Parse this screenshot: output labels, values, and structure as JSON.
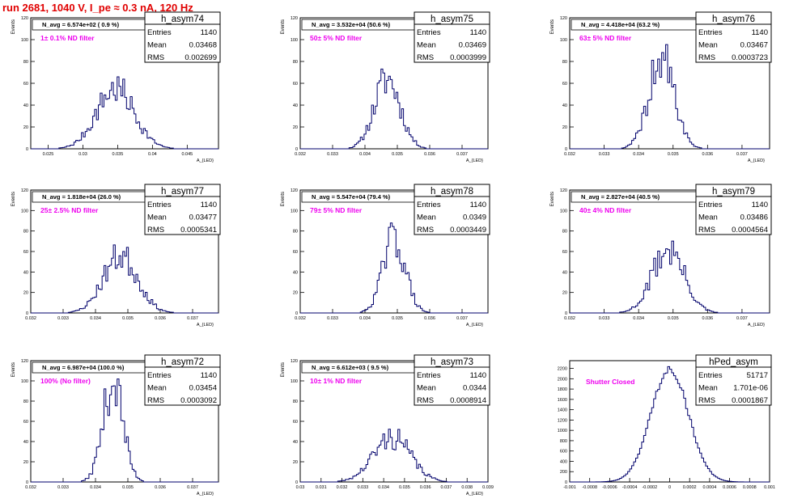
{
  "header": {
    "run_title": "run 2681,  1040 V, I_pe ≈ 0.3 nA, 120 Hz"
  },
  "style": {
    "line_color": "#00006b",
    "note_color": "#ee00ee",
    "title_color": "#e00000"
  },
  "chart_data": [
    {
      "type": "histogram",
      "name": "h_asym74",
      "entries": "1140",
      "mean": "0.03468",
      "rms": "0.002699",
      "n_avg": "N_avg = 6.574e+02 ( 0.9 %)",
      "note": "1± 0.1% ND filter",
      "ylabel": "Events",
      "xlabel": "A_{LED}",
      "xlim": [
        0.0225,
        0.0495
      ],
      "ylim": [
        0,
        120
      ],
      "xticks": [
        "0.025",
        "0.03",
        "0.035",
        "0.04",
        "0.045"
      ],
      "xtick_values": [
        0.025,
        0.03,
        0.035,
        0.04,
        0.045
      ],
      "yticks": [
        "0",
        "20",
        "40",
        "60",
        "80",
        "100",
        "120"
      ],
      "ytick_values": [
        0,
        20,
        40,
        60,
        80,
        100,
        120
      ],
      "mu": 0.03468,
      "sigma": 0.0027,
      "peak": 55,
      "seed": 7
    },
    {
      "type": "histogram",
      "name": "h_asym75",
      "entries": "1140",
      "mean": "0.03469",
      "rms": "0.0003999",
      "n_avg": "N_avg = 3.532e+04 (50.6 %)",
      "note": "50± 5% ND filter",
      "ylabel": "Events",
      "xlabel": "A_{LED}",
      "xlim": [
        0.032,
        0.0378
      ],
      "ylim": [
        0,
        120
      ],
      "xticks": [
        "0.032",
        "0.033",
        "0.034",
        "0.035",
        "0.036",
        "0.037"
      ],
      "xtick_values": [
        0.032,
        0.033,
        0.034,
        0.035,
        0.036,
        0.037
      ],
      "yticks": [
        "0",
        "20",
        "40",
        "60",
        "80",
        "100",
        "120"
      ],
      "ytick_values": [
        0,
        20,
        40,
        60,
        80,
        100,
        120
      ],
      "mu": 0.03469,
      "sigma": 0.0004,
      "peak": 64,
      "seed": 11
    },
    {
      "type": "histogram",
      "name": "h_asym76",
      "entries": "1140",
      "mean": "0.03467",
      "rms": "0.0003723",
      "n_avg": "N_avg = 4.418e+04 (63.2 %)",
      "note": "63± 5% ND filter",
      "ylabel": "Events",
      "xlabel": "A_{LED}",
      "xlim": [
        0.032,
        0.0378
      ],
      "ylim": [
        0,
        120
      ],
      "xticks": [
        "0.032",
        "0.033",
        "0.034",
        "0.035",
        "0.036",
        "0.037"
      ],
      "xtick_values": [
        0.032,
        0.033,
        0.034,
        0.035,
        0.036,
        0.037
      ],
      "yticks": [
        "0",
        "20",
        "40",
        "60",
        "80",
        "100",
        "120"
      ],
      "ytick_values": [
        0,
        20,
        40,
        60,
        80,
        100,
        120
      ],
      "mu": 0.03467,
      "sigma": 0.00037,
      "peak": 82,
      "seed": 19
    },
    {
      "type": "histogram",
      "name": "h_asym77",
      "entries": "1140",
      "mean": "0.03477",
      "rms": "0.0005341",
      "n_avg": "N_avg = 1.818e+04 (26.0 %)",
      "note": "25± 2.5% ND filter",
      "ylabel": "Events",
      "xlabel": "A_{LED}",
      "xlim": [
        0.032,
        0.0378
      ],
      "ylim": [
        0,
        120
      ],
      "xticks": [
        "0.032",
        "0.033",
        "0.034",
        "0.035",
        "0.036",
        "0.037"
      ],
      "xtick_values": [
        0.032,
        0.033,
        0.034,
        0.035,
        0.036,
        0.037
      ],
      "yticks": [
        "0",
        "20",
        "40",
        "60",
        "80",
        "100",
        "120"
      ],
      "ytick_values": [
        0,
        20,
        40,
        60,
        80,
        100,
        120
      ],
      "mu": 0.03477,
      "sigma": 0.00053,
      "peak": 56,
      "seed": 23
    },
    {
      "type": "histogram",
      "name": "h_asym78",
      "entries": "1140",
      "mean": "0.0349",
      "rms": "0.0003449",
      "n_avg": "N_avg = 5.547e+04 (79.4 %)",
      "note": "79± 5% ND filter",
      "ylabel": "Events",
      "xlabel": "A_{LED}",
      "xlim": [
        0.032,
        0.0378
      ],
      "ylim": [
        0,
        120
      ],
      "xticks": [
        "0.032",
        "0.033",
        "0.034",
        "0.035",
        "0.036",
        "0.037"
      ],
      "xtick_values": [
        0.032,
        0.033,
        0.034,
        0.035,
        0.036,
        0.037
      ],
      "yticks": [
        "0",
        "20",
        "40",
        "60",
        "80",
        "100",
        "120"
      ],
      "ytick_values": [
        0,
        20,
        40,
        60,
        80,
        100,
        120
      ],
      "mu": 0.0349,
      "sigma": 0.000345,
      "peak": 73,
      "seed": 29
    },
    {
      "type": "histogram",
      "name": "h_asym79",
      "entries": "1140",
      "mean": "0.03486",
      "rms": "0.0004564",
      "n_avg": "N_avg = 2.827e+04 (40.5 %)",
      "note": "40± 4% ND filter",
      "ylabel": "Events",
      "xlabel": "A_{LED}",
      "xlim": [
        0.032,
        0.0378
      ],
      "ylim": [
        0,
        120
      ],
      "xticks": [
        "0.032",
        "0.033",
        "0.034",
        "0.035",
        "0.036",
        "0.037"
      ],
      "xtick_values": [
        0.032,
        0.033,
        0.034,
        0.035,
        0.036,
        0.037
      ],
      "yticks": [
        "0",
        "20",
        "40",
        "60",
        "80",
        "100",
        "120"
      ],
      "ytick_values": [
        0,
        20,
        40,
        60,
        80,
        100,
        120
      ],
      "mu": 0.03486,
      "sigma": 0.00046,
      "peak": 62,
      "seed": 31
    },
    {
      "type": "histogram",
      "name": "h_asym72",
      "entries": "1140",
      "mean": "0.03454",
      "rms": "0.0003092",
      "n_avg": "N_avg = 6.987e+04 (100.0 %)",
      "note": "100% (No filter)",
      "ylabel": "Events",
      "xlabel": "A_{LED}",
      "xlim": [
        0.032,
        0.0378
      ],
      "ylim": [
        0,
        120
      ],
      "xticks": [
        "0.032",
        "0.033",
        "0.034",
        "0.035",
        "0.036",
        "0.037"
      ],
      "xtick_values": [
        0.032,
        0.033,
        0.034,
        0.035,
        0.036,
        0.037
      ],
      "yticks": [
        "0",
        "20",
        "40",
        "60",
        "80",
        "100",
        "120"
      ],
      "ytick_values": [
        0,
        20,
        40,
        60,
        80,
        100,
        120
      ],
      "mu": 0.03454,
      "sigma": 0.00031,
      "peak": 100,
      "seed": 37
    },
    {
      "type": "histogram",
      "name": "h_asym73",
      "entries": "1140",
      "mean": "0.0344",
      "rms": "0.0008914",
      "n_avg": "N_avg = 6.612e+03 ( 9.5 %)",
      "note": "10± 1% ND filter",
      "ylabel": "Events",
      "xlabel": "A_{LED}",
      "xlim": [
        0.03,
        0.039
      ],
      "ylim": [
        0,
        120
      ],
      "xticks": [
        "0.03",
        "0.031",
        "0.032",
        "0.033",
        "0.034",
        "0.035",
        "0.036",
        "0.037",
        "0.038",
        "0.039"
      ],
      "xtick_values": [
        0.03,
        0.031,
        0.032,
        0.033,
        0.034,
        0.035,
        0.036,
        0.037,
        0.038,
        0.039
      ],
      "yticks": [
        "0",
        "20",
        "40",
        "60",
        "80",
        "100",
        "120"
      ],
      "ytick_values": [
        0,
        20,
        40,
        60,
        80,
        100,
        120
      ],
      "mu": 0.0344,
      "sigma": 0.00089,
      "peak": 44,
      "seed": 41
    },
    {
      "type": "histogram",
      "name": "hPed_asym",
      "entries": "51717",
      "mean": "1.701e-06",
      "rms": "0.0001867",
      "n_avg": "",
      "note": "Shutter Closed",
      "ylabel": "",
      "xlabel": "",
      "xlim": [
        -0.001,
        0.001
      ],
      "ylim": [
        0,
        2350
      ],
      "xticks": [
        "-0.001",
        "-0.0008",
        "-0.0006",
        "-0.0004",
        "-0.0002",
        "0",
        "0.0002",
        "0.0004",
        "0.0006",
        "0.0008",
        "0.001"
      ],
      "xtick_values": [
        -0.001,
        -0.0008,
        -0.0006,
        -0.0004,
        -0.0002,
        0,
        0.0002,
        0.0004,
        0.0006,
        0.0008,
        0.001
      ],
      "yticks": [
        "0",
        "200",
        "400",
        "600",
        "800",
        "1000",
        "1200",
        "1400",
        "1600",
        "1800",
        "2000",
        "2200"
      ],
      "ytick_values": [
        0,
        200,
        400,
        600,
        800,
        1000,
        1200,
        1400,
        1600,
        1800,
        2000,
        2200
      ],
      "mu": 0.0,
      "sigma": 0.000187,
      "peak": 2200,
      "seed": 43
    }
  ]
}
